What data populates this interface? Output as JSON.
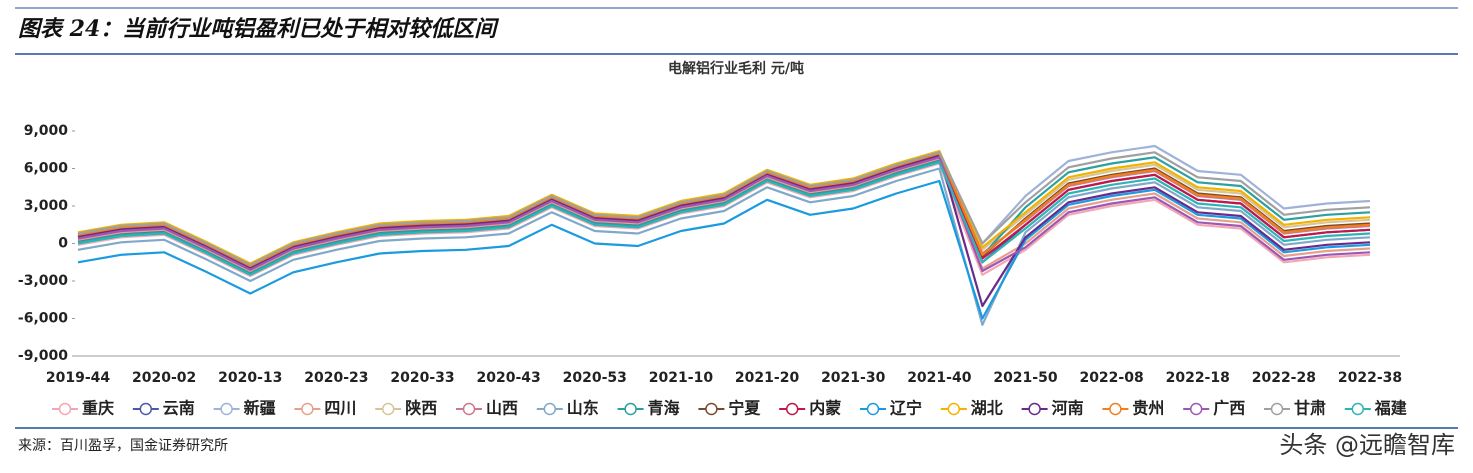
{
  "header": {
    "title": "图表 24：当前行业吨铝盈利已处于相对较低区间"
  },
  "chart_data": {
    "type": "line",
    "title": "电解铝行业毛利    元/吨",
    "categories": [
      "2019-44",
      null,
      "2020-02",
      null,
      "2020-13",
      null,
      "2020-23",
      null,
      "2020-33",
      null,
      "2020-43",
      null,
      "2020-53",
      null,
      "2021-10",
      null,
      "2021-20",
      null,
      "2021-30",
      null,
      "2021-40",
      null,
      "2021-50",
      null,
      "2022-08",
      null,
      "2022-18",
      null,
      "2022-28",
      null,
      "2022-38"
    ],
    "ylim": [
      -9000,
      9000
    ],
    "yticks": [
      {
        "value": -9000,
        "label": "-9,000"
      },
      {
        "value": -6000,
        "label": "-6,000"
      },
      {
        "value": -3000,
        "label": "-3,000"
      },
      0,
      {
        "value": 3000,
        "label": "3,000"
      },
      {
        "value": 6000,
        "label": "6,000"
      },
      {
        "value": 9000,
        "label": "9,000"
      }
    ],
    "legend": "bottom",
    "series": [
      {
        "name": "重庆",
        "color": "#f4a6b4",
        "values": [
          -100,
          500,
          700,
          -900,
          -2600,
          -900,
          -100,
          600,
          800,
          900,
          1200,
          2900,
          1400,
          1200,
          2400,
          3000,
          4900,
          3700,
          4200,
          5400,
          6400,
          -2500,
          -500,
          2300,
          3000,
          3500,
          1500,
          1200,
          -1500,
          -1100,
          -900
        ]
      },
      {
        "name": "云南",
        "color": "#4a5aa8",
        "values": [
          200,
          800,
          1000,
          -600,
          -2300,
          -600,
          200,
          900,
          1100,
          1200,
          1500,
          3200,
          1700,
          1500,
          2700,
          3300,
          5200,
          4000,
          4500,
          5700,
          6700,
          -1500,
          1500,
          4300,
          5000,
          5500,
          3500,
          3200,
          500,
          900,
          1100
        ]
      },
      {
        "name": "新疆",
        "color": "#9fb3d9",
        "values": [
          500,
          1100,
          1300,
          -300,
          -2000,
          -300,
          500,
          1200,
          1400,
          1500,
          1800,
          3500,
          2000,
          1800,
          3000,
          3600,
          5500,
          4300,
          4800,
          6000,
          7000,
          0,
          3800,
          6600,
          7300,
          7800,
          5800,
          5500,
          2800,
          3200,
          3400
        ]
      },
      {
        "name": "四川",
        "color": "#e8a08c",
        "values": [
          300,
          900,
          1100,
          -500,
          -2200,
          -500,
          300,
          1000,
          1200,
          1300,
          1600,
          3300,
          1800,
          1600,
          2800,
          3400,
          5300,
          4100,
          4600,
          5800,
          6800,
          -2000,
          0,
          2800,
          3500,
          4000,
          2000,
          1700,
          -1000,
          -600,
          -400
        ]
      },
      {
        "name": "陕西",
        "color": "#d9c49a",
        "values": [
          800,
          1400,
          1600,
          0,
          -1700,
          0,
          800,
          1500,
          1700,
          1800,
          2100,
          3800,
          2300,
          2100,
          3300,
          3900,
          5800,
          4600,
          5100,
          6300,
          7300,
          -500,
          2300,
          5100,
          5800,
          6300,
          4300,
          4000,
          1300,
          1700,
          1900
        ]
      },
      {
        "name": "山西",
        "color": "#c97a8a",
        "values": [
          700,
          1300,
          1500,
          -100,
          -1800,
          -100,
          700,
          1400,
          1600,
          1700,
          2000,
          3700,
          2200,
          2000,
          3200,
          3800,
          5700,
          4500,
          5000,
          6200,
          7200,
          -800,
          1800,
          4600,
          5300,
          5800,
          3800,
          3500,
          800,
          1200,
          1400
        ]
      },
      {
        "name": "山东",
        "color": "#7fa8c9",
        "values": [
          -500,
          100,
          300,
          -1300,
          -3000,
          -1300,
          -500,
          200,
          400,
          500,
          800,
          2500,
          1000,
          800,
          2000,
          2600,
          4500,
          3300,
          3800,
          5000,
          6000,
          -6500,
          900,
          3700,
          4400,
          4900,
          2900,
          2600,
          -100,
          300,
          500
        ]
      },
      {
        "name": "青海",
        "color": "#2aa0a0",
        "values": [
          100,
          700,
          900,
          -700,
          -2400,
          -700,
          100,
          800,
          1000,
          1100,
          1400,
          3100,
          1600,
          1400,
          2600,
          3200,
          5100,
          3900,
          4400,
          5600,
          6600,
          -1000,
          2900,
          5700,
          6400,
          6900,
          4900,
          4600,
          1900,
          2300,
          2500
        ]
      },
      {
        "name": "宁夏",
        "color": "#7b4a2e",
        "values": [
          600,
          1200,
          1400,
          -200,
          -1900,
          -200,
          600,
          1300,
          1500,
          1600,
          1900,
          3600,
          2100,
          1900,
          3100,
          3700,
          5600,
          4400,
          4900,
          6100,
          7100,
          -1000,
          2000,
          4800,
          5500,
          6000,
          4000,
          3700,
          1000,
          1400,
          1600
        ]
      },
      {
        "name": "内蒙",
        "color": "#c0184a",
        "values": [
          500,
          1100,
          1300,
          -300,
          -2000,
          -300,
          500,
          1200,
          1400,
          1500,
          1800,
          3500,
          2000,
          1800,
          3000,
          3600,
          5500,
          4300,
          4800,
          6000,
          7000,
          -1200,
          1500,
          4300,
          5000,
          5500,
          3500,
          3200,
          500,
          900,
          1100
        ]
      },
      {
        "name": "辽宁",
        "color": "#1a9be0",
        "values": [
          -1500,
          -900,
          -700,
          -2300,
          -4000,
          -2300,
          -1500,
          -800,
          -600,
          -500,
          -200,
          1500,
          0,
          -200,
          1000,
          1600,
          3500,
          2300,
          2800,
          4000,
          5000,
          -6000,
          300,
          3100,
          3800,
          4300,
          2300,
          2000,
          -700,
          -300,
          -100
        ]
      },
      {
        "name": "湖北",
        "color": "#f0b400",
        "values": [
          900,
          1500,
          1700,
          100,
          -1600,
          100,
          900,
          1600,
          1800,
          1900,
          2200,
          3900,
          2400,
          2200,
          3400,
          4000,
          5900,
          4700,
          5200,
          6400,
          7400,
          -300,
          2500,
          5300,
          6000,
          6500,
          4500,
          4200,
          1500,
          1900,
          2100
        ]
      },
      {
        "name": "河南",
        "color": "#6a2a8a",
        "values": [
          600,
          1200,
          1400,
          -200,
          -1900,
          -200,
          600,
          1300,
          1500,
          1600,
          1900,
          3600,
          2100,
          1900,
          3100,
          3700,
          5600,
          4400,
          4900,
          6100,
          7100,
          -5000,
          500,
          3300,
          4000,
          4500,
          2500,
          2200,
          -500,
          -100,
          100
        ]
      },
      {
        "name": "贵州",
        "color": "#f07f1e",
        "values": [
          700,
          1300,
          1500,
          -100,
          -1800,
          -100,
          700,
          1400,
          1600,
          1700,
          2000,
          3700,
          2200,
          2000,
          3200,
          3800,
          5700,
          4500,
          5000,
          6200,
          7200,
          -900,
          1900,
          4700,
          5400,
          5900,
          3900,
          3600,
          900,
          1300,
          1500
        ]
      },
      {
        "name": "广西",
        "color": "#9b59b6",
        "values": [
          400,
          1000,
          1200,
          -400,
          -2100,
          -400,
          400,
          1100,
          1300,
          1400,
          1700,
          3400,
          1900,
          1700,
          2900,
          3500,
          5400,
          4200,
          4700,
          5900,
          6900,
          -2200,
          -300,
          2500,
          3200,
          3700,
          1700,
          1400,
          -1300,
          -900,
          -700
        ]
      },
      {
        "name": "甘肃",
        "color": "#a0a0a0",
        "values": [
          800,
          1400,
          1600,
          0,
          -1700,
          0,
          800,
          1500,
          1700,
          1800,
          2100,
          3800,
          2300,
          2100,
          3300,
          3900,
          5800,
          4600,
          5100,
          6300,
          7300,
          0,
          3300,
          6100,
          6800,
          7300,
          5300,
          5000,
          2300,
          2700,
          2900
        ]
      },
      {
        "name": "福建",
        "color": "#2bb5b5",
        "values": [
          0,
          600,
          800,
          -800,
          -2500,
          -800,
          0,
          700,
          900,
          1000,
          1300,
          3000,
          1500,
          1300,
          2500,
          3100,
          5000,
          3800,
          4300,
          5500,
          6500,
          -1500,
          1200,
          4000,
          4700,
          5200,
          3200,
          2900,
          200,
          600,
          800
        ]
      }
    ]
  },
  "source": "来源：百川盈孚，国金证券研究所",
  "watermark": "头条 @远瞻智库"
}
